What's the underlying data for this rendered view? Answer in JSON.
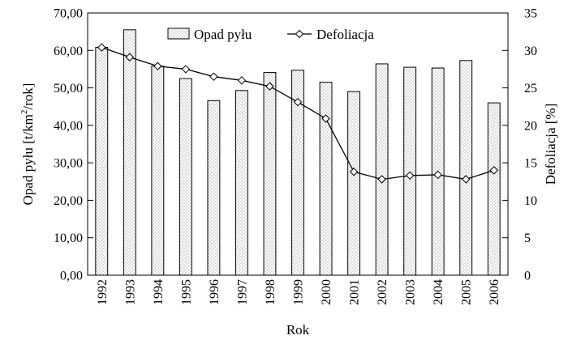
{
  "chart_data": {
    "type": "bar+line",
    "categories": [
      "1992",
      "1993",
      "1994",
      "1995",
      "1996",
      "1997",
      "1998",
      "1999",
      "2000",
      "2001",
      "2002",
      "2003",
      "2004",
      "2005",
      "2006"
    ],
    "series": [
      {
        "name": "Opad pyłu",
        "type": "bar",
        "axis": "left",
        "values": [
          60.8,
          65.5,
          55.8,
          52.5,
          46.6,
          49.3,
          54.1,
          54.7,
          51.5,
          49.0,
          56.4,
          55.5,
          55.3,
          57.3,
          46.0
        ]
      },
      {
        "name": "Defoliacja",
        "type": "line",
        "axis": "right",
        "marker": "diamond",
        "values": [
          30.4,
          29.1,
          27.9,
          27.5,
          26.5,
          26.0,
          25.2,
          23.1,
          20.9,
          13.8,
          12.8,
          13.3,
          13.4,
          12.8,
          14.0
        ]
      }
    ],
    "xlabel": "Rok",
    "ylabel_left": "Opad pyłu [t/km",
    "ylabel_left_sup": "2",
    "ylabel_left_end": "/rok]",
    "ylabel_right": "Defoliacja [%]",
    "ylim_left": [
      0,
      70
    ],
    "ylim_right": [
      0,
      35
    ],
    "yticks_left": [
      "0,00",
      "10,00",
      "20,00",
      "30,00",
      "40,00",
      "50,00",
      "60,00",
      "70,00"
    ],
    "yticks_right": [
      "0",
      "5",
      "10",
      "15",
      "20",
      "25",
      "30",
      "35"
    ],
    "legend": {
      "placement": "top-center",
      "items": [
        "Opad pyłu",
        "Defoliacja"
      ]
    },
    "grid": false
  }
}
